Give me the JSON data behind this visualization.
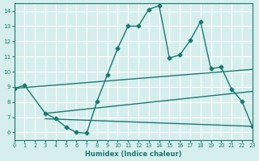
{
  "bg_color": "#d6eeee",
  "grid_color": "#ffffff",
  "line_color": "#1a7a6e",
  "xlabel": "Humidex (Indice chaleur)",
  "xlim": [
    0,
    23
  ],
  "ylim": [
    5.5,
    14.5
  ],
  "yticks": [
    6,
    7,
    8,
    9,
    10,
    11,
    12,
    13,
    14
  ],
  "xticks": [
    0,
    1,
    2,
    3,
    4,
    5,
    6,
    7,
    8,
    9,
    10,
    11,
    12,
    13,
    14,
    15,
    16,
    17,
    18,
    19,
    20,
    21,
    22,
    23
  ],
  "series": [
    {
      "x": [
        0,
        1,
        3,
        4,
        5,
        6,
        7,
        8,
        9,
        10,
        11,
        12,
        13,
        14,
        15,
        16,
        17,
        18,
        19,
        20,
        21,
        22,
        23
      ],
      "y": [
        8.9,
        9.1,
        7.25,
        6.9,
        6.35,
        6.0,
        5.95,
        8.05,
        9.8,
        11.55,
        13.0,
        13.0,
        14.1,
        14.35,
        10.9,
        11.1,
        12.05,
        13.3,
        10.2,
        10.3,
        8.85,
        8.05,
        6.4
      ],
      "marker": "D",
      "markersize": 2.5,
      "linewidth": 1.0
    },
    {
      "x": [
        0,
        23
      ],
      "y": [
        8.9,
        10.15
      ],
      "marker": "",
      "markersize": 0,
      "linewidth": 1.0
    },
    {
      "x": [
        3,
        23
      ],
      "y": [
        7.25,
        8.7
      ],
      "marker": "",
      "markersize": 0,
      "linewidth": 1.0
    },
    {
      "x": [
        3,
        23
      ],
      "y": [
        6.9,
        6.4
      ],
      "marker": "",
      "markersize": 0,
      "linewidth": 1.0
    }
  ]
}
